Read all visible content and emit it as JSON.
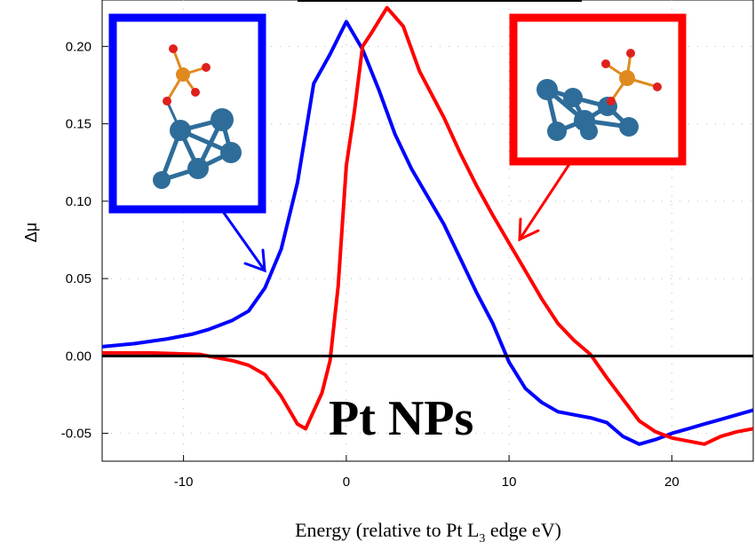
{
  "chart_data": {
    "type": "line",
    "title": "",
    "xlabel": "Energy (relative to Pt L",
    "xlabel_sub": "3",
    "xlabel_tail": " edge eV)",
    "ylabel": "Δμ",
    "xlim": [
      -15,
      25
    ],
    "ylim": [
      -0.068,
      0.23
    ],
    "xticks": [
      -10,
      0,
      10,
      20
    ],
    "xtick_labels": [
      "-10",
      "0",
      "10",
      "20"
    ],
    "yticks": [
      -0.05,
      0,
      0.05,
      0.1,
      0.15,
      0.2
    ],
    "ytick_labels": [
      "-0.05",
      "0.00",
      "0.05",
      "0.10",
      "0.15",
      "0.20"
    ],
    "grid": "dotted",
    "annotation": "Pt NPs",
    "series": [
      {
        "color": "#0000ff",
        "x": [
          -15,
          -13,
          -11,
          -9.5,
          -8.5,
          -7,
          -6,
          -5,
          -4,
          -3,
          -2,
          -1,
          0,
          1,
          2,
          3,
          4,
          5,
          6,
          7,
          8,
          9,
          10,
          11,
          12,
          13,
          14,
          15,
          16,
          17,
          18,
          19,
          20,
          21,
          22,
          23,
          24,
          25
        ],
        "y": [
          0.006,
          0.008,
          0.011,
          0.014,
          0.017,
          0.023,
          0.029,
          0.044,
          0.069,
          0.112,
          0.176,
          0.195,
          0.216,
          0.198,
          0.172,
          0.143,
          0.121,
          0.103,
          0.085,
          0.063,
          0.041,
          0.021,
          -0.004,
          -0.021,
          -0.03,
          -0.036,
          -0.038,
          -0.04,
          -0.043,
          -0.052,
          -0.057,
          -0.054,
          -0.05,
          -0.047,
          -0.044,
          -0.041,
          -0.038,
          -0.035
        ]
      },
      {
        "color": "#ff0000",
        "x": [
          -15,
          -12,
          -9,
          -8,
          -7,
          -6,
          -5,
          -4,
          -3,
          -2.5,
          -1.5,
          -1,
          -0.5,
          0,
          0.5,
          1,
          1.5,
          2.5,
          3.5,
          4.5,
          6,
          7,
          8,
          9,
          10,
          11,
          12,
          13,
          14,
          15,
          16,
          17,
          18,
          19,
          20,
          21,
          22,
          23,
          24,
          25
        ],
        "y": [
          0.002,
          0.002,
          0.001,
          -0.001,
          -0.003,
          -0.006,
          -0.012,
          -0.026,
          -0.044,
          -0.047,
          -0.024,
          -0.003,
          0.045,
          0.123,
          0.158,
          0.2,
          0.208,
          0.225,
          0.213,
          0.184,
          0.154,
          0.131,
          0.11,
          0.091,
          0.073,
          0.055,
          0.037,
          0.021,
          0.01,
          0.001,
          -0.014,
          -0.028,
          -0.042,
          -0.049,
          -0.053,
          -0.055,
          -0.057,
          -0.052,
          -0.049,
          -0.047
        ]
      }
    ],
    "zero_line_color": "#000000"
  },
  "colors": {
    "blue": "#0000ff",
    "red": "#ff0000",
    "atom_pt": "#2e6d9a",
    "atom_p": "#e08a1e",
    "atom_o": "#e0201c"
  }
}
